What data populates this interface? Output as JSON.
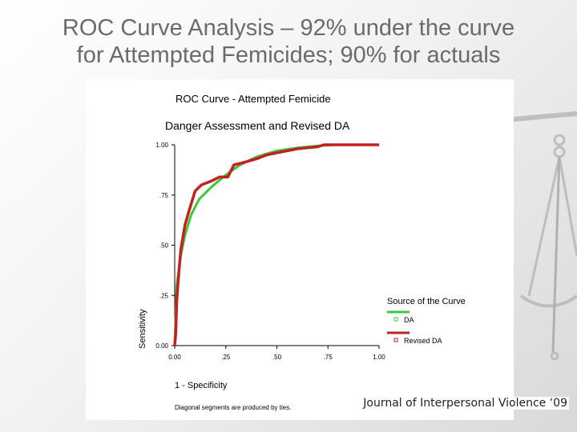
{
  "slide": {
    "title_line1": "ROC Curve Analysis – 92% under the curve",
    "title_line2": "for Attempted Femicides; 90% for actuals",
    "citation": "Journal of Interpersonal Violence ‘09"
  },
  "colors": {
    "title": "#6b6b6b",
    "da_series": "#3cc83c",
    "revised_da_series": "#c42020",
    "axis": "#000000"
  },
  "chart_data": {
    "type": "line",
    "title": "ROC Curve - Attempted Femicide",
    "subtitle": "Danger Assessment and Revised DA",
    "xlabel": "1 - Specificity",
    "ylabel": "Sensitivity",
    "xlim": [
      0,
      1
    ],
    "ylim": [
      0,
      1
    ],
    "x_ticks": [
      "0.00",
      ".25",
      ".50",
      ".75",
      "1.00"
    ],
    "y_ticks": [
      "0.00",
      ".25",
      ".50",
      ".75",
      "1.00"
    ],
    "grid": false,
    "legend_title": "Source of the Curve",
    "legend_position": "right",
    "footnote": "Diagonal segments are produced by ties.",
    "series": [
      {
        "name": "DA",
        "color": "#3cc83c",
        "points": [
          [
            0,
            0
          ],
          [
            0.01,
            0.3
          ],
          [
            0.03,
            0.45
          ],
          [
            0.05,
            0.55
          ],
          [
            0.08,
            0.65
          ],
          [
            0.12,
            0.73
          ],
          [
            0.18,
            0.79
          ],
          [
            0.25,
            0.85
          ],
          [
            0.32,
            0.9
          ],
          [
            0.4,
            0.94
          ],
          [
            0.5,
            0.97
          ],
          [
            0.6,
            0.985
          ],
          [
            0.7,
            0.995
          ],
          [
            0.8,
            1.0
          ],
          [
            1.0,
            1.0
          ]
        ]
      },
      {
        "name": "Revised DA",
        "color": "#c42020",
        "points": [
          [
            0,
            0
          ],
          [
            0.005,
            0.06
          ],
          [
            0.01,
            0.22
          ],
          [
            0.02,
            0.36
          ],
          [
            0.03,
            0.48
          ],
          [
            0.05,
            0.6
          ],
          [
            0.07,
            0.67
          ],
          [
            0.1,
            0.77
          ],
          [
            0.13,
            0.8
          ],
          [
            0.18,
            0.82
          ],
          [
            0.22,
            0.84
          ],
          [
            0.26,
            0.84
          ],
          [
            0.29,
            0.9
          ],
          [
            0.33,
            0.91
          ],
          [
            0.4,
            0.93
          ],
          [
            0.45,
            0.95
          ],
          [
            0.5,
            0.96
          ],
          [
            0.55,
            0.97
          ],
          [
            0.6,
            0.98
          ],
          [
            0.7,
            0.99
          ],
          [
            0.73,
            1.0
          ],
          [
            1.0,
            1.0
          ]
        ]
      }
    ]
  }
}
